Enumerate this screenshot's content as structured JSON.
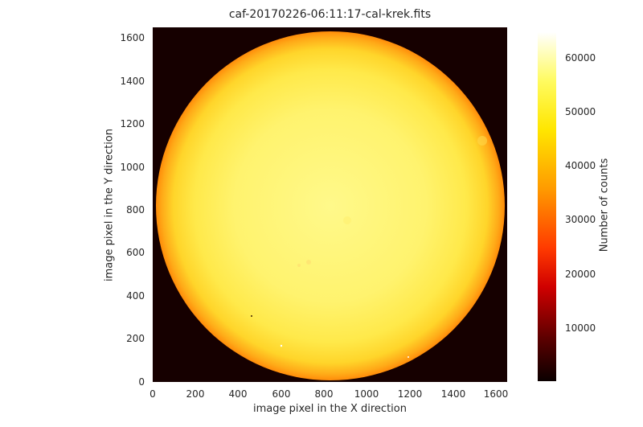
{
  "figure": {
    "title": "caf-20170226-06:11:17-cal-krek.fits",
    "xlabel": "image pixel in the X direction",
    "ylabel": "image pixel in the Y direction",
    "colorbar_label": "Number of counts",
    "colormap": "hot",
    "background_color": "#160000"
  },
  "axes": {
    "x_ticks": [
      "0",
      "200",
      "400",
      "600",
      "800",
      "1000",
      "1200",
      "1400",
      "1600"
    ],
    "y_ticks": [
      "0",
      "200",
      "400",
      "600",
      "800",
      "1000",
      "1200",
      "1400",
      "1600"
    ],
    "xlim": [
      0,
      1650
    ],
    "ylim": [
      0,
      1650
    ]
  },
  "colorbar": {
    "ticks": [
      "10000",
      "20000",
      "30000",
      "40000",
      "50000",
      "60000"
    ],
    "range": [
      0,
      65000
    ]
  }
}
